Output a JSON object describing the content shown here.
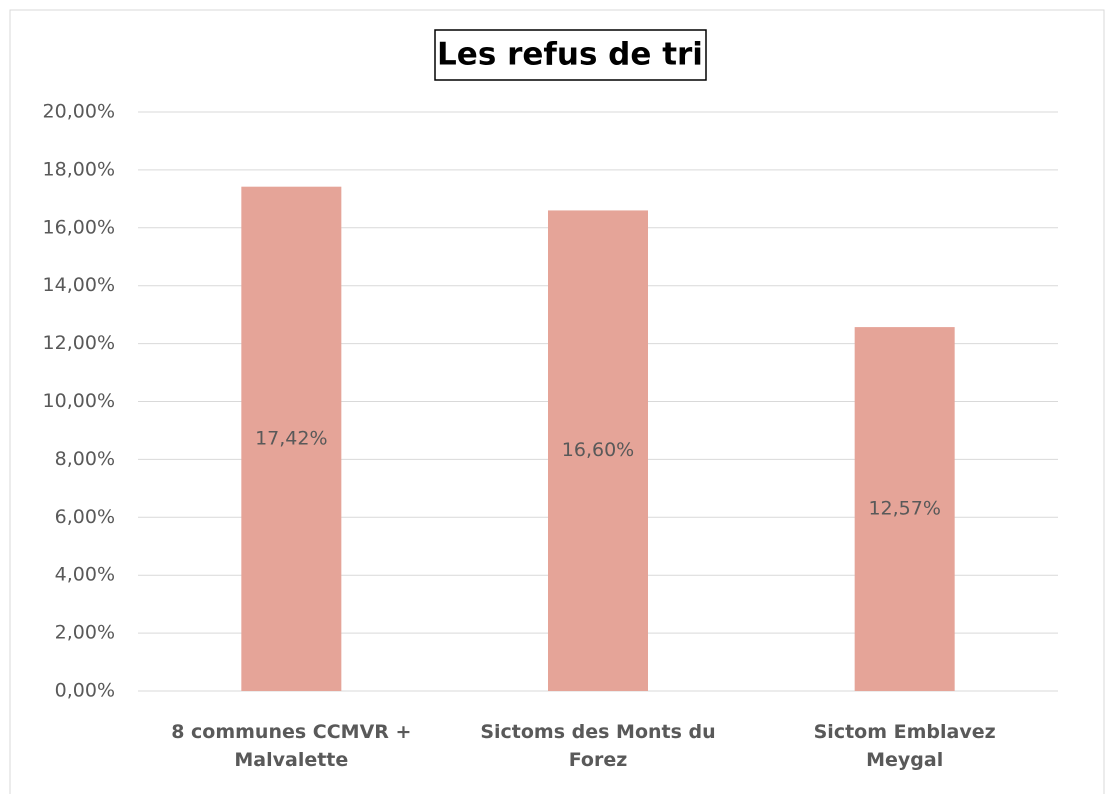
{
  "chart_data": {
    "type": "bar",
    "title": "Les refus de tri",
    "categories": [
      "8 communes CCMVR + Malvalette",
      "Sictoms des Monts du Forez",
      "Sictom Emblavez Meygal"
    ],
    "values": [
      17.42,
      16.6,
      12.57
    ],
    "value_labels": [
      "17,42%",
      "16,60%",
      "12,57%"
    ],
    "color": "#e5a498",
    "ylim": [
      0,
      20
    ],
    "yticks": [
      {
        "value": 0,
        "label": "0,00%"
      },
      {
        "value": 2,
        "label": "2,00%"
      },
      {
        "value": 4,
        "label": "4,00%"
      },
      {
        "value": 6,
        "label": "6,00%"
      },
      {
        "value": 8,
        "label": "8,00%"
      },
      {
        "value": 10,
        "label": "10,00%"
      },
      {
        "value": 12,
        "label": "12,00%"
      },
      {
        "value": 14,
        "label": "14,00%"
      },
      {
        "value": 16,
        "label": "16,00%"
      },
      {
        "value": 18,
        "label": "18,00%"
      },
      {
        "value": 20,
        "label": "20,00%"
      }
    ],
    "grid": true
  }
}
